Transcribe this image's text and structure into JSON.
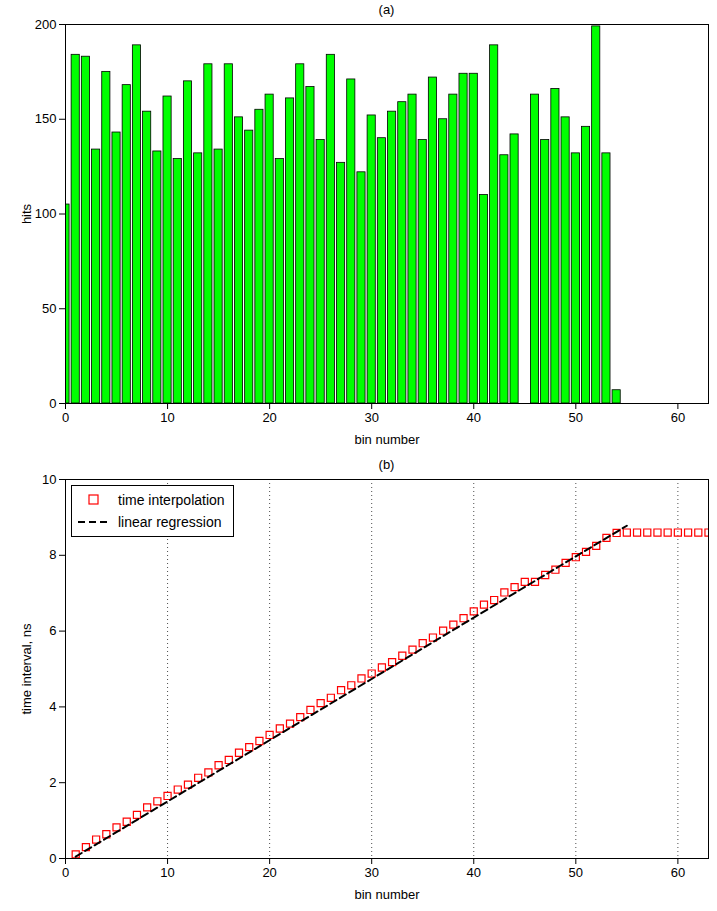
{
  "chart_data": [
    {
      "type": "bar",
      "title": "(a)",
      "xlabel": "bin number",
      "ylabel": "hits",
      "color": "#00ff00",
      "x": [
        0,
        1,
        2,
        3,
        4,
        5,
        6,
        7,
        8,
        9,
        10,
        11,
        12,
        13,
        14,
        15,
        16,
        17,
        18,
        19,
        20,
        21,
        22,
        23,
        24,
        25,
        26,
        27,
        28,
        29,
        30,
        31,
        32,
        33,
        34,
        35,
        36,
        37,
        38,
        39,
        40,
        41,
        42,
        43,
        44,
        45,
        46,
        47,
        48,
        49,
        50,
        51,
        52,
        53,
        54
      ],
      "values": [
        105,
        184,
        183,
        134,
        175,
        143,
        168,
        189,
        154,
        133,
        162,
        129,
        170,
        132,
        179,
        134,
        179,
        151,
        144,
        155,
        163,
        129,
        161,
        179,
        167,
        139,
        184,
        127,
        171,
        122,
        152,
        140,
        154,
        159,
        163,
        139,
        172,
        150,
        163,
        174,
        174,
        110,
        189,
        131,
        142,
        0,
        163,
        139,
        166,
        151,
        132,
        146,
        199,
        132,
        7
      ],
      "xlim": [
        0,
        63
      ],
      "xticks": [
        0,
        10,
        20,
        30,
        40,
        50,
        60
      ],
      "ylim": [
        0,
        200
      ],
      "yticks": [
        0,
        50,
        100,
        150,
        200
      ]
    },
    {
      "type": "line",
      "title": "(b)",
      "xlabel": "bin number",
      "ylabel": "time interval, ns",
      "xlim": [
        0,
        63
      ],
      "xticks": [
        0,
        10,
        20,
        30,
        40,
        50,
        60
      ],
      "ylim": [
        0,
        10
      ],
      "yticks": [
        0,
        2,
        4,
        6,
        8,
        10
      ],
      "grid": "x",
      "legend": "top-left",
      "series": [
        {
          "name": "time interpolation",
          "type": "scatter",
          "color": "#ff0000",
          "marker": "square",
          "x": [
            1,
            2,
            3,
            4,
            5,
            6,
            7,
            8,
            9,
            10,
            11,
            12,
            13,
            14,
            15,
            16,
            17,
            18,
            19,
            20,
            21,
            22,
            23,
            24,
            25,
            26,
            27,
            28,
            29,
            30,
            31,
            32,
            33,
            34,
            35,
            36,
            37,
            38,
            39,
            40,
            41,
            42,
            43,
            44,
            45,
            46,
            47,
            48,
            49,
            50,
            51,
            52,
            53,
            54,
            55,
            56,
            57,
            58,
            59,
            60,
            61,
            62,
            63
          ],
          "values": [
            0.11,
            0.3,
            0.5,
            0.64,
            0.82,
            0.97,
            1.15,
            1.35,
            1.51,
            1.65,
            1.82,
            1.95,
            2.13,
            2.27,
            2.46,
            2.6,
            2.79,
            2.94,
            3.1,
            3.26,
            3.43,
            3.56,
            3.73,
            3.92,
            4.1,
            4.24,
            4.44,
            4.57,
            4.75,
            4.88,
            5.04,
            5.18,
            5.35,
            5.51,
            5.68,
            5.83,
            6.01,
            6.17,
            6.34,
            6.52,
            6.7,
            6.82,
            7.02,
            7.16,
            7.3,
            7.3,
            7.48,
            7.62,
            7.8,
            7.95,
            8.09,
            8.25,
            8.46,
            8.59,
            8.6,
            8.6,
            8.6,
            8.6,
            8.6,
            8.6,
            8.6,
            8.6,
            8.6
          ]
        },
        {
          "name": "linear regression",
          "type": "line",
          "color": "#000000",
          "line_style": "dashed",
          "x": [
            1,
            55
          ],
          "values": [
            0.05,
            8.78
          ]
        }
      ]
    }
  ]
}
